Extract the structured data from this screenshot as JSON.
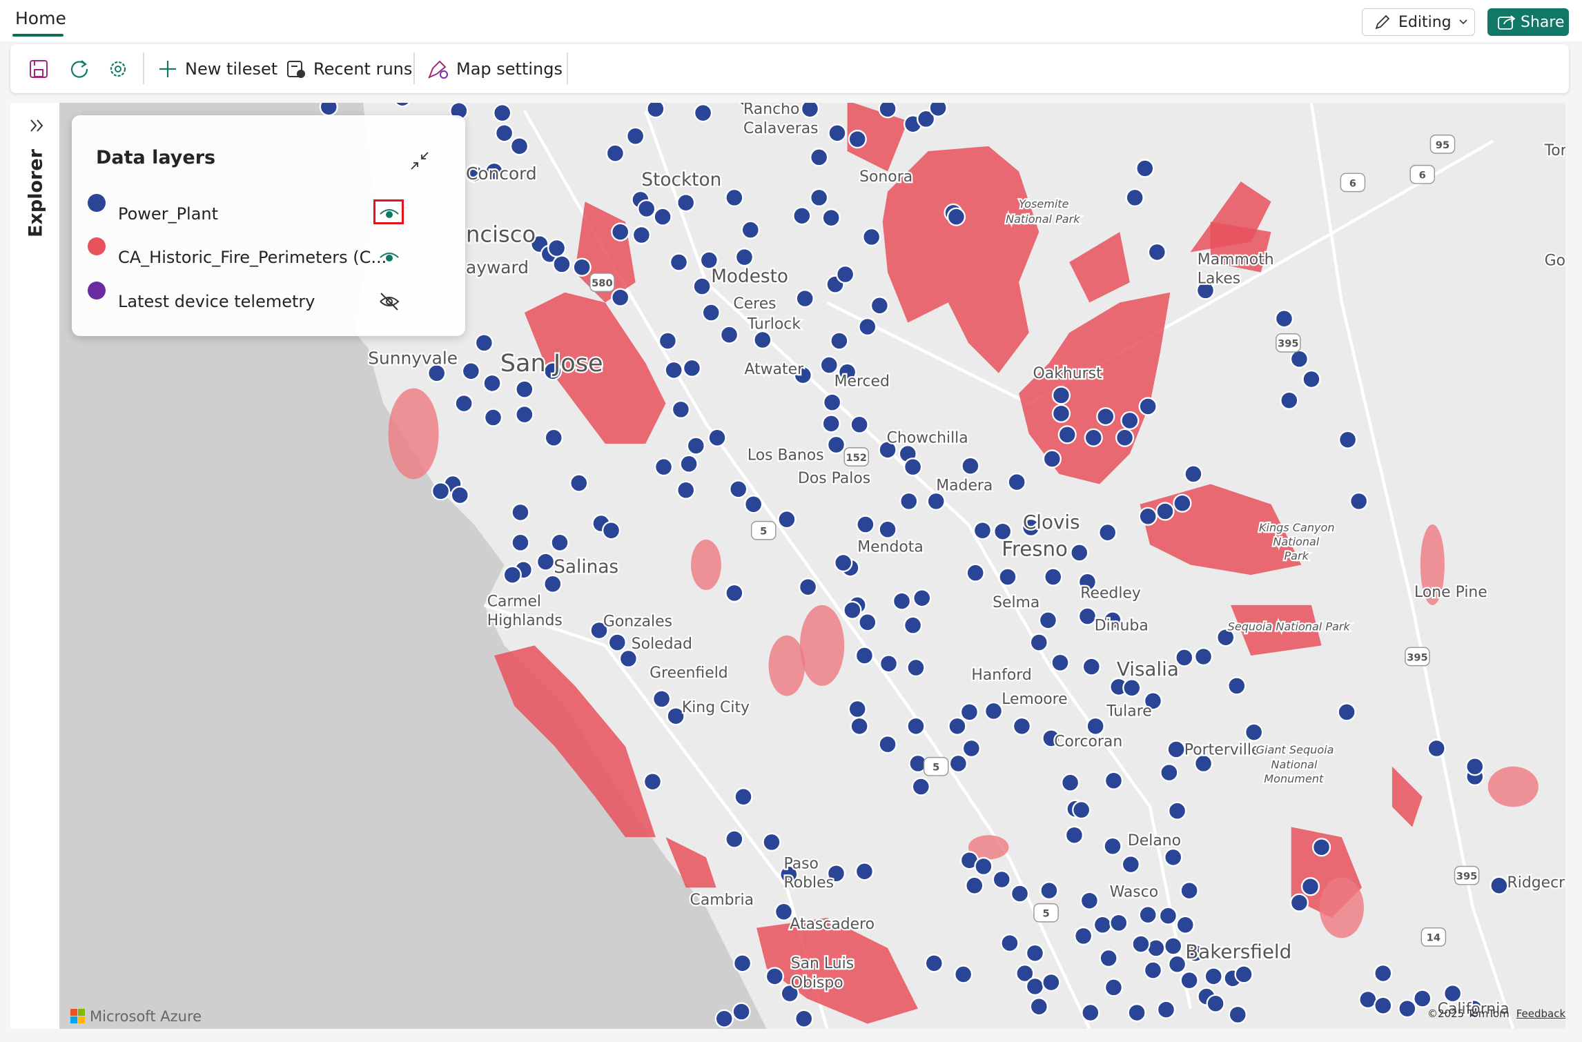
{
  "header": {
    "tab": "Home",
    "editing": "Editing",
    "share": "Share"
  },
  "toolbar": {
    "new_tileset": "New tileset",
    "recent_runs": "Recent runs",
    "map_settings": "Map settings"
  },
  "sidebar": {
    "label": "Explorer"
  },
  "data_layers": {
    "title": "Data layers",
    "layers": [
      {
        "name": "Power_Plant",
        "color": "#2a4596",
        "visible": true
      },
      {
        "name": "CA_Historic_Fire_Perimeters (C...",
        "color": "#e8525c",
        "visible": true
      },
      {
        "name": "Latest device telemetry",
        "color": "#6a2aa0",
        "visible": false
      }
    ]
  },
  "map": {
    "labels": [
      "Rancho",
      "Calaveras",
      "ncisco",
      "Concord",
      "ayward",
      "Stockton",
      "Sonora",
      "Modesto",
      "Ceres",
      "Turlock",
      "Sunnyvale",
      "San Jose",
      "Atwater",
      "Merced",
      "Oakhurst",
      "Mammoth",
      "Lakes",
      "Los Banos",
      "Chowchilla",
      "Dos Palos",
      "Madera",
      "Clovis",
      "Fresno",
      "Mendota",
      "Salinas",
      "Reedley",
      "Selma",
      "Dinuba",
      "Carmel",
      "Highlands",
      "Gonzales",
      "Soledad",
      "Greenfield",
      "Hanford",
      "Visalia",
      "Lemoore",
      "Tulare",
      "King City",
      "Corcoran",
      "Porterville",
      "Delano",
      "Paso",
      "Robles",
      "Wasco",
      "Cambria",
      "Atascadero",
      "Bakersfield",
      "San Luis",
      "Obispo",
      "Lone Pine",
      "Ridgecre",
      "Tor",
      "Gol",
      "Yosemite",
      "National Park",
      "Kings Canyon",
      "National",
      "Park",
      "Sequoia National Park",
      "Giant Sequoia",
      "National",
      "Monument",
      "California"
    ],
    "shields": [
      "95",
      "6",
      "6",
      "580",
      "152",
      "5",
      "395",
      "395",
      "5",
      "395",
      "5",
      "14"
    ],
    "logo": "Microsoft Azure",
    "copyright": "©2025 TomTom",
    "feedback": "Feedback"
  }
}
